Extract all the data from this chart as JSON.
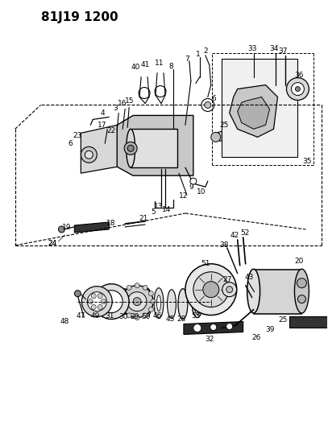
{
  "title": "81J19 1200",
  "bg": "#ffffff",
  "lc": "#000000",
  "figsize": [
    4.07,
    5.33
  ],
  "dpi": 100,
  "title_fs": 11,
  "label_fs": 6.5
}
